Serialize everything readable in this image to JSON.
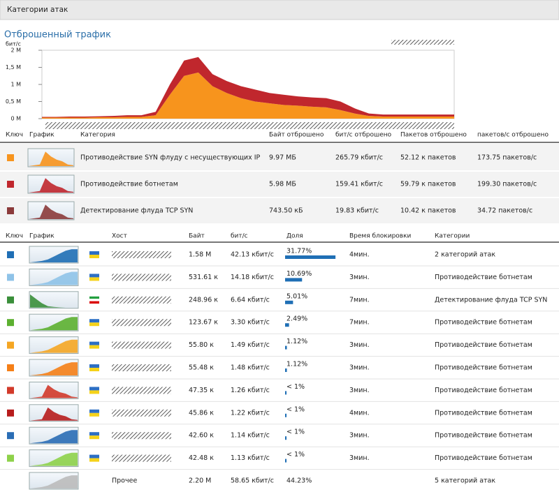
{
  "header": {
    "title": "Категории атак"
  },
  "traffic_chart": {
    "type": "area",
    "stacked": true,
    "title": "Отброшенный трафик",
    "y_label": "бит/с",
    "ylim": [
      0,
      2
    ],
    "yticks": [
      {
        "value": 0,
        "label": "0 M"
      },
      {
        "value": 0.5,
        "label": "0,5 M"
      },
      {
        "value": 1,
        "label": "1 M"
      },
      {
        "value": 1.5,
        "label": "1,5 M"
      },
      {
        "value": 2,
        "label": "2 M"
      }
    ],
    "series": [
      {
        "color": "#f7941d",
        "values": [
          0.03,
          0.03,
          0.03,
          0.03,
          0.04,
          0.04,
          0.05,
          0.05,
          0.1,
          0.7,
          1.25,
          1.35,
          0.95,
          0.75,
          0.6,
          0.5,
          0.45,
          0.4,
          0.38,
          0.35,
          0.33,
          0.25,
          0.15,
          0.08,
          0.06,
          0.06,
          0.06,
          0.06,
          0.06,
          0.06
        ]
      },
      {
        "color": "#c0272d",
        "values": [
          0.02,
          0.02,
          0.03,
          0.03,
          0.03,
          0.04,
          0.05,
          0.05,
          0.1,
          0.3,
          0.45,
          0.45,
          0.35,
          0.35,
          0.35,
          0.35,
          0.3,
          0.3,
          0.27,
          0.27,
          0.27,
          0.25,
          0.15,
          0.07,
          0.06,
          0.06,
          0.06,
          0.06,
          0.06,
          0.06
        ]
      }
    ]
  },
  "categories_table": {
    "columns": [
      "Ключ",
      "График",
      "Категория",
      "Байт отброшено",
      "бит/с отброшено",
      "Пакетов отброшено",
      "пакетов/с отброшено"
    ],
    "rows": [
      {
        "color": "#f7941d",
        "name": "Противодействие SYN флуду с несуществующих IP",
        "bytes": "9.97 МБ",
        "bps": "265.79 кбит/с",
        "packets": "52.12 к пакетов",
        "pps": "173.75 пакетов/с"
      },
      {
        "color": "#c0272d",
        "name": "Противодействие ботнетам",
        "bytes": "5.98 МБ",
        "bps": "159.41 кбит/с",
        "packets": "59.79 к пакетов",
        "pps": "199.30 пакетов/с"
      },
      {
        "color": "#8b3a3a",
        "name": "Детектирование флуда TCP SYN",
        "bytes": "743.50 кБ",
        "bps": "19.83 кбит/с",
        "packets": "10.42 к пакетов",
        "pps": "34.72 пакетов/с"
      }
    ]
  },
  "hosts_table": {
    "columns": [
      "Ключ",
      "График",
      "Хост",
      "Байт",
      "бит/с",
      "Доля",
      "Время блокировки",
      "Категории"
    ],
    "rows": [
      {
        "color": "#1f6fb5",
        "bytes": "1.58 M",
        "bps": "42.13 кбит/с",
        "share": {
          "value": 31.77,
          "label": "31.77%"
        },
        "time": "4мин.",
        "categories": "2 категорий атак"
      },
      {
        "color": "#8fc3e8",
        "bytes": "531.61 к",
        "bps": "14.18 кбит/с",
        "share": {
          "value": 10.69,
          "label": "10.69%"
        },
        "time": "3мин.",
        "categories": "Противодействие ботнетам"
      },
      {
        "color": "#3a8f3a",
        "bytes": "248.96 к",
        "bps": "6.64 кбит/с",
        "share": {
          "value": 5.01,
          "label": "5.01%"
        },
        "time": "7мин.",
        "categories": "Детектирование флуда TCP SYN"
      },
      {
        "color": "#5cb030",
        "bytes": "123.67 к",
        "bps": "3.30 кбит/с",
        "share": {
          "value": 2.49,
          "label": "2.49%"
        },
        "time": "7мин.",
        "categories": "Противодействие ботнетам"
      },
      {
        "color": "#f5a623",
        "bytes": "55.80 к",
        "bps": "1.49 кбит/с",
        "share": {
          "value": 1.12,
          "label": "1.12%"
        },
        "time": "3мин.",
        "categories": "Противодействие ботнетам"
      },
      {
        "color": "#f57f17",
        "bytes": "55.48 к",
        "bps": "1.48 кбит/с",
        "share": {
          "value": 1.12,
          "label": "1.12%"
        },
        "time": "3мин.",
        "categories": "Противодействие ботнетам"
      },
      {
        "color": "#d23a2a",
        "bytes": "47.35 к",
        "bps": "1.26 кбит/с",
        "share": {
          "value": 0.9,
          "label": "< 1%"
        },
        "time": "3мин.",
        "categories": "Противодействие ботнетам"
      },
      {
        "color": "#b71c1c",
        "bytes": "45.86 к",
        "bps": "1.22 кбит/с",
        "share": {
          "value": 0.9,
          "label": "< 1%"
        },
        "time": "4мин.",
        "categories": "Противодействие ботнетам"
      },
      {
        "color": "#2a6db5",
        "bytes": "42.60 к",
        "bps": "1.14 кбит/с",
        "share": {
          "value": 0.9,
          "label": "< 1%"
        },
        "time": "3мин.",
        "categories": "Противодействие ботнетам"
      },
      {
        "color": "#8ed14a",
        "bytes": "42.48 к",
        "bps": "1.13 кбит/с",
        "share": {
          "value": 0.9,
          "label": "< 1%"
        },
        "time": "3мин.",
        "categories": "Противодействие ботнетам"
      }
    ],
    "other": {
      "host": "Прочее",
      "bytes": "2.20 M",
      "bps": "58.65 кбит/с",
      "share": "44.23%",
      "categories": "5 категорий атак"
    }
  }
}
